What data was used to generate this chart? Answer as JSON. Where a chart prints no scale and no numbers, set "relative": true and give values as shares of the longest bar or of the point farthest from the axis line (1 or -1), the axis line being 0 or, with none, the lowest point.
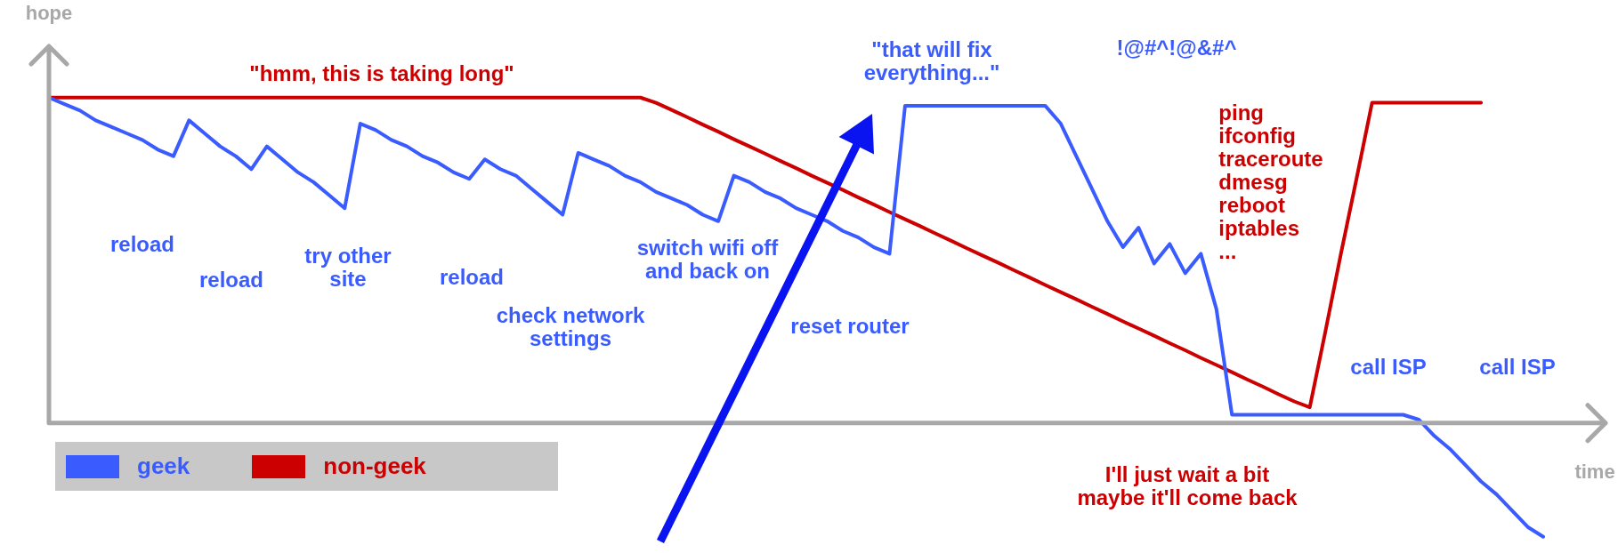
{
  "chart_data": {
    "type": "line",
    "relative": true,
    "tick_labels": false,
    "marker": "none",
    "line_style": "solid",
    "legend": "bottom left",
    "xlabel": "time",
    "ylabel": "hope",
    "categories": [
      null,
      null,
      null,
      null,
      null,
      null,
      null,
      null,
      null,
      null,
      null,
      null,
      null,
      null,
      null,
      null,
      null,
      null,
      null,
      null,
      null,
      null,
      null,
      null,
      null,
      null,
      null,
      null,
      null,
      null,
      null,
      null,
      null,
      null,
      null,
      null,
      null,
      null,
      null,
      null,
      null,
      null,
      null,
      null,
      null,
      null,
      null,
      null,
      null,
      null,
      null,
      null,
      null,
      null,
      null,
      null,
      null,
      null,
      null,
      null,
      null,
      null,
      null,
      null,
      null,
      null,
      null,
      null,
      null,
      null,
      null,
      null,
      null,
      null,
      null,
      null,
      null,
      null,
      null,
      null,
      null,
      null,
      null,
      null,
      null,
      null,
      null,
      null,
      null,
      null,
      null,
      null,
      null,
      null,
      null,
      null,
      null,
      null,
      null,
      null,
      null
    ],
    "series": [
      {
        "name": "geek",
        "color": "#3a5cff",
        "values": [
          1.0,
          0.98,
          0.96,
          0.93,
          0.91,
          0.89,
          0.87,
          0.84,
          0.82,
          0.93,
          0.89,
          0.85,
          0.82,
          0.78,
          0.85,
          0.81,
          0.77,
          0.74,
          0.7,
          0.66,
          0.92,
          0.9,
          0.87,
          0.85,
          0.82,
          0.8,
          0.77,
          0.75,
          0.81,
          0.78,
          0.76,
          0.72,
          0.68,
          0.64,
          0.83,
          0.81,
          0.79,
          0.76,
          0.74,
          0.71,
          0.69,
          0.67,
          0.64,
          0.62,
          0.76,
          0.74,
          0.71,
          0.69,
          0.66,
          0.64,
          0.62,
          0.59,
          0.57,
          0.54,
          0.52,
          0.975,
          0.975,
          0.975,
          0.975,
          0.975,
          0.975,
          0.975,
          0.975,
          0.975,
          0.975,
          0.92,
          0.82,
          0.72,
          0.62,
          0.54,
          0.6,
          0.49,
          0.55,
          0.46,
          0.52,
          0.35,
          0.025,
          0.025,
          0.025,
          0.025,
          0.025,
          0.025,
          0.025,
          0.025,
          0.025,
          0.025,
          0.025,
          0.025,
          0.01,
          -0.04,
          -0.08,
          -0.13,
          -0.18,
          -0.22,
          -0.27,
          -0.32,
          -0.35,
          null,
          null,
          null,
          null
        ]
      },
      {
        "name": "non-geek",
        "color": "#cc0000",
        "values": [
          1.0,
          1.0,
          1.0,
          1.0,
          1.0,
          1.0,
          1.0,
          1.0,
          1.0,
          1.0,
          1.0,
          1.0,
          1.0,
          1.0,
          1.0,
          1.0,
          1.0,
          1.0,
          1.0,
          1.0,
          1.0,
          1.0,
          1.0,
          1.0,
          1.0,
          1.0,
          1.0,
          1.0,
          1.0,
          1.0,
          1.0,
          1.0,
          1.0,
          1.0,
          1.0,
          1.0,
          1.0,
          1.0,
          1.0,
          0.984,
          0.962,
          0.94,
          0.917,
          0.895,
          0.872,
          0.85,
          0.828,
          0.805,
          0.783,
          0.76,
          0.738,
          0.716,
          0.693,
          0.671,
          0.648,
          0.626,
          0.604,
          0.581,
          0.559,
          0.536,
          0.514,
          0.492,
          0.469,
          0.447,
          0.424,
          0.402,
          0.38,
          0.357,
          0.335,
          0.312,
          0.29,
          0.268,
          0.245,
          0.223,
          0.2,
          0.178,
          0.156,
          0.133,
          0.111,
          0.088,
          0.066,
          0.048,
          0.28,
          0.52,
          0.75,
          0.984,
          0.984,
          0.984,
          0.984,
          0.984,
          0.984,
          0.984,
          0.984,
          null,
          null,
          null,
          null,
          null,
          null,
          null,
          null
        ]
      }
    ],
    "annotations": [
      "\"hmm, this is taking long\"",
      "reload",
      "reload",
      "try other\nsite",
      "reload",
      "check network\nsettings",
      "switch wifi off\nand back on",
      "reset router",
      "\"that will fix\neverything...\"",
      "!@#^!@&#^",
      "ping\nifconfig\ntraceroute\ndmesg\nreboot\niptables\n...",
      "call ISP",
      "call ISP",
      "I'll just wait a bit\nmaybe it'll come back"
    ]
  }
}
